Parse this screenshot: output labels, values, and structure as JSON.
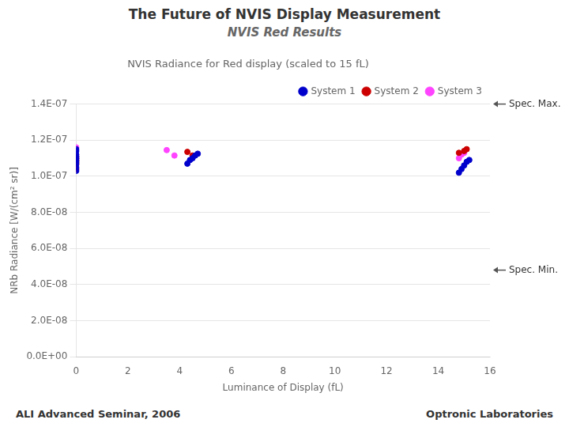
{
  "chart_data": {
    "type": "scatter",
    "title": "The Future of NVIS Display Measurement",
    "subtitle": "NVIS Red Results",
    "chart_title": "NVIS Radiance for Red display (scaled to 15 fL)",
    "xlabel": "Luminance of Display (fL)",
    "ylabel": "NRb Radiance [W/(cm² sr)]",
    "series": [
      {
        "name": "System 1",
        "color": "#0000cc",
        "x": [
          0,
          0,
          0,
          0,
          0,
          0,
          0,
          0,
          0,
          0,
          4.3,
          4.4,
          4.5,
          4.6,
          4.7,
          14.8,
          14.9,
          15.0,
          15.1,
          15.2
        ],
        "values": [
          1.03e-07,
          1.05e-07,
          1.07e-07,
          1.08e-07,
          1.09e-07,
          1.1e-07,
          1.11e-07,
          1.12e-07,
          1.14e-07,
          1.15e-07,
          1.07e-07,
          1.09e-07,
          1.1e-07,
          1.115e-07,
          1.125e-07,
          1.02e-07,
          1.04e-07,
          1.06e-07,
          1.08e-07,
          1.09e-07
        ]
      },
      {
        "name": "System 2",
        "color": "#cc0000",
        "x": [
          0,
          0,
          0,
          0,
          0,
          0,
          0,
          4.3,
          4.5,
          14.8,
          15.0,
          15.1
        ],
        "values": [
          1.04e-07,
          1.065e-07,
          1.075e-07,
          1.085e-07,
          1.09e-07,
          1.1e-07,
          1.11e-07,
          1.135e-07,
          1.115e-07,
          1.13e-07,
          1.14e-07,
          1.15e-07
        ]
      },
      {
        "name": "System 3",
        "color": "#ff44ff",
        "x": [
          0,
          0,
          0,
          3.5,
          3.8,
          14.8,
          14.9,
          15.0
        ],
        "values": [
          1.04e-07,
          1.1e-07,
          1.16e-07,
          1.145e-07,
          1.115e-07,
          1.1e-07,
          1.12e-07,
          1.13e-07
        ]
      }
    ],
    "xlim": [
      0,
      16
    ],
    "ylim": [
      0,
      1.4e-07
    ],
    "xticks": [
      0,
      2,
      4,
      6,
      8,
      10,
      12,
      14,
      16
    ],
    "yticks": [
      {
        "value": 0,
        "label": "0.0E+00"
      },
      {
        "value": 2e-08,
        "label": "2.0E-08"
      },
      {
        "value": 4e-08,
        "label": "4.0E-08"
      },
      {
        "value": 6e-08,
        "label": "6.0E-08"
      },
      {
        "value": 8e-08,
        "label": "8.0E-08"
      },
      {
        "value": 1e-07,
        "label": "1.0E-07"
      },
      {
        "value": 1.2e-07,
        "label": "1.2E-07"
      },
      {
        "value": 1.4e-07,
        "label": "1.4E-07"
      }
    ],
    "grid": "y",
    "legend": "upper right",
    "annotations": [
      {
        "text": "Spec. Max.",
        "y": 1.4e-07
      },
      {
        "text": "Spec. Min.",
        "y": 4.8e-08
      }
    ],
    "footer": [
      "ALI Advanced Seminar, 2006",
      "Optronic Laboratories"
    ]
  }
}
